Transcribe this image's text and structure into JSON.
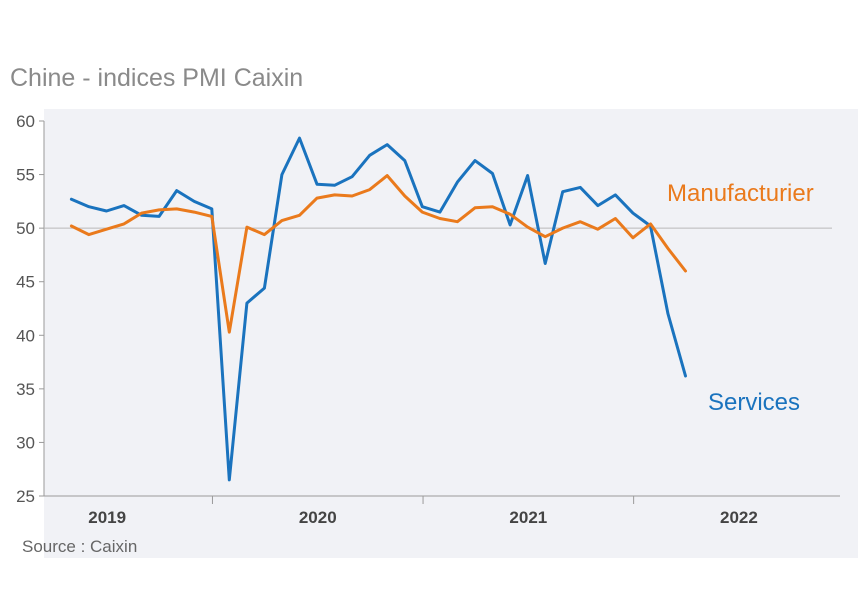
{
  "chart_data": {
    "type": "line",
    "title": "Chine - indices PMI Caixin",
    "source": "Source : Caixin",
    "ylim": [
      25,
      60
    ],
    "yticks": [
      60,
      55,
      50,
      45,
      40,
      35,
      30,
      25
    ],
    "reference_line": 50,
    "x_domain": [
      2018.7,
      2022.48
    ],
    "xticks": [
      {
        "label": "2019",
        "at": 2019.0
      },
      {
        "label": "2020",
        "at": 2020.0
      },
      {
        "label": "2021",
        "at": 2021.0
      },
      {
        "label": "2022",
        "at": 2022.0
      }
    ],
    "year_separators": [
      2019.5,
      2020.5,
      2021.5
    ],
    "x_start": 2018.83,
    "x_step": 0.08333,
    "series": [
      {
        "name": "Services",
        "color": "#1a73be",
        "values": [
          52.7,
          52.0,
          51.6,
          52.1,
          51.2,
          51.1,
          53.5,
          52.5,
          51.8,
          26.5,
          43.0,
          44.4,
          55.0,
          58.4,
          54.1,
          54.0,
          54.8,
          56.8,
          57.8,
          56.3,
          52.0,
          51.5,
          54.3,
          56.3,
          55.1,
          50.3,
          54.9,
          46.7,
          53.4,
          53.8,
          52.1,
          53.1,
          51.4,
          50.2,
          42.0,
          36.2
        ]
      },
      {
        "name": "Manufacturier",
        "color": "#ea7a1c",
        "values": [
          50.2,
          49.4,
          49.9,
          50.4,
          51.4,
          51.7,
          51.8,
          51.5,
          51.1,
          40.3,
          50.1,
          49.4,
          50.7,
          51.2,
          52.8,
          53.1,
          53.0,
          53.6,
          54.9,
          53.0,
          51.5,
          50.9,
          50.6,
          51.9,
          52.0,
          51.3,
          50.1,
          49.2,
          50.0,
          50.6,
          49.9,
          50.9,
          49.1,
          50.4,
          48.1,
          46.0
        ]
      }
    ]
  }
}
